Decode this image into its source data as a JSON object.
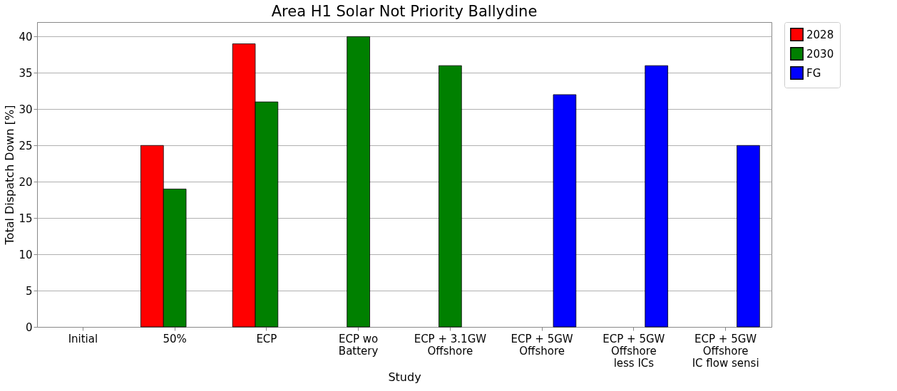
{
  "chart_data": {
    "type": "bar",
    "title": "Area H1 Solar Not Priority Ballydine",
    "xlabel": "Study",
    "ylabel": "Total Dispatch Down [%]",
    "categories": [
      "Initial",
      "50%",
      "ECP",
      "ECP wo\nBattery",
      "ECP + 3.1GW\nOffshore",
      "ECP + 5GW\nOffshore",
      "ECP + 5GW\nOffshore\nless ICs",
      "ECP + 5GW\nOffshore\nIC flow sensi"
    ],
    "series": [
      {
        "name": "2028",
        "color": "#ff0000",
        "values": [
          null,
          25,
          39,
          null,
          null,
          null,
          null,
          null
        ]
      },
      {
        "name": "2030",
        "color": "#008000",
        "values": [
          null,
          19,
          31,
          40,
          36,
          null,
          null,
          null
        ]
      },
      {
        "name": "FG",
        "color": "#0000ff",
        "values": [
          null,
          null,
          null,
          null,
          null,
          32,
          36,
          25
        ]
      }
    ],
    "ylim": [
      0,
      42
    ],
    "yticks": [
      0,
      5,
      10,
      15,
      20,
      25,
      30,
      35,
      40
    ],
    "grid": "y",
    "legend": "right"
  }
}
